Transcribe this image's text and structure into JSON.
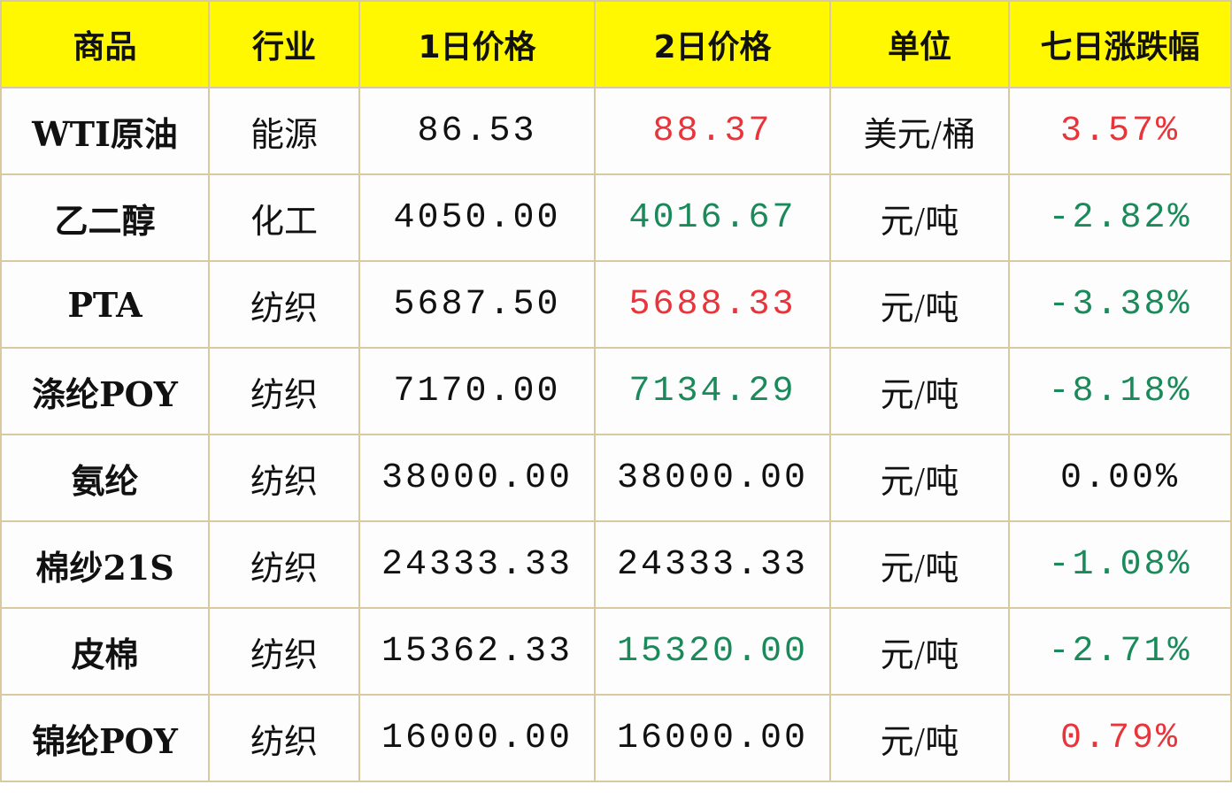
{
  "colors": {
    "header_bg": "#fff800",
    "up": "#e8343a",
    "down": "#1a8a5a",
    "neutral": "#111111",
    "border": "#d9c9a0"
  },
  "headers": [
    "商品",
    "行业",
    "1日价格",
    "2日价格",
    "单位",
    "七日涨跌幅"
  ],
  "rows": [
    {
      "name": "WTI原油",
      "industry": "能源",
      "price1": "86.53",
      "price2": "88.37",
      "price2_trend": "up",
      "unit": "美元/桶",
      "change": "3.57%",
      "change_trend": "up"
    },
    {
      "name": "乙二醇",
      "industry": "化工",
      "price1": "4050.00",
      "price2": "4016.67",
      "price2_trend": "down",
      "unit": "元/吨",
      "change": "-2.82%",
      "change_trend": "down"
    },
    {
      "name": "PTA",
      "industry": "纺织",
      "price1": "5687.50",
      "price2": "5688.33",
      "price2_trend": "up",
      "unit": "元/吨",
      "change": "-3.38%",
      "change_trend": "down"
    },
    {
      "name": "涤纶POY",
      "industry": "纺织",
      "price1": "7170.00",
      "price2": "7134.29",
      "price2_trend": "down",
      "unit": "元/吨",
      "change": "-8.18%",
      "change_trend": "down"
    },
    {
      "name": "氨纶",
      "industry": "纺织",
      "price1": "38000.00",
      "price2": "38000.00",
      "price2_trend": "neutral",
      "unit": "元/吨",
      "change": "0.00%",
      "change_trend": "neutral"
    },
    {
      "name": "棉纱21S",
      "industry": "纺织",
      "price1": "24333.33",
      "price2": "24333.33",
      "price2_trend": "neutral",
      "unit": "元/吨",
      "change": "-1.08%",
      "change_trend": "down"
    },
    {
      "name": "皮棉",
      "industry": "纺织",
      "price1": "15362.33",
      "price2": "15320.00",
      "price2_trend": "down",
      "unit": "元/吨",
      "change": "-2.71%",
      "change_trend": "down"
    },
    {
      "name": "锦纶POY",
      "industry": "纺织",
      "price1": "16000.00",
      "price2": "16000.00",
      "price2_trend": "neutral",
      "unit": "元/吨",
      "change": "0.79%",
      "change_trend": "up"
    }
  ]
}
